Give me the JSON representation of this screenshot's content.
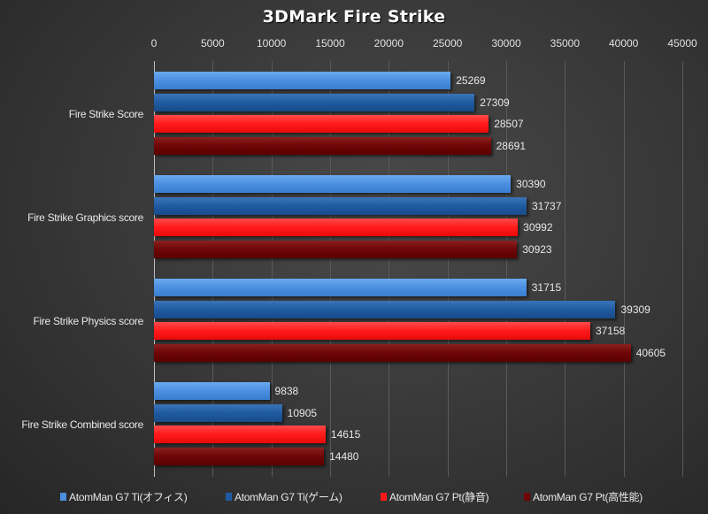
{
  "chart_data": {
    "type": "bar",
    "orientation": "horizontal",
    "title": "3DMark Fire Strike",
    "xlabel": "",
    "ylabel": "",
    "xlim": [
      0,
      45000
    ],
    "x_ticks": [
      "0",
      "5000",
      "10000",
      "15000",
      "20000",
      "25000",
      "30000",
      "35000",
      "40000",
      "45000"
    ],
    "x_axis_position": "top",
    "grid": true,
    "legend_position": "bottom",
    "categories": [
      "Fire Strike Score",
      "Fire Strike Graphics score",
      "Fire Strike Physics score",
      "Fire Strike Combined score"
    ],
    "series": [
      {
        "name": "AtomMan G7 Ti(オフィス)",
        "color": "#4a8fe0",
        "values": [
          25269,
          30390,
          31715,
          9838
        ]
      },
      {
        "name": "AtomMan G7 Ti(ゲーム)",
        "color": "#1f5aa0",
        "values": [
          27309,
          31737,
          39309,
          10905
        ]
      },
      {
        "name": "AtomMan G7 Pt(静音)",
        "color": "#ff1a1a",
        "values": [
          28507,
          30992,
          37158,
          14615
        ]
      },
      {
        "name": "AtomMan G7 Pt(高性能)",
        "color": "#6e0606",
        "values": [
          28691,
          30923,
          40605,
          14480
        ]
      }
    ],
    "value_labels": {
      "fire_strike_score": [
        "25269",
        "27309",
        "28507",
        "28691"
      ],
      "graphics_score": [
        "30390",
        "31737",
        "30992",
        "30923"
      ],
      "physics_score": [
        "31715",
        "39309",
        "37158",
        "40605"
      ],
      "combined_score": [
        "9838",
        "10905",
        "14615",
        "14480"
      ]
    }
  }
}
